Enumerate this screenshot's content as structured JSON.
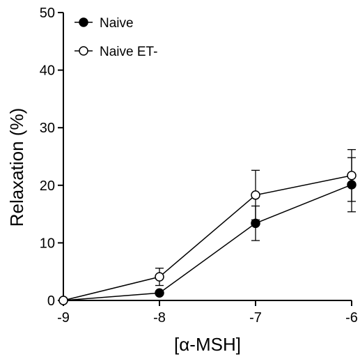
{
  "chart_data": {
    "type": "line",
    "title": "",
    "xlabel": "[α-MSH]",
    "ylabel": "Relaxation (%)",
    "xlim": [
      -9,
      -6
    ],
    "ylim": [
      0,
      50
    ],
    "x_ticks": [
      -9,
      -8,
      -7,
      -6
    ],
    "y_ticks": [
      0,
      10,
      20,
      30,
      40,
      50
    ],
    "grid": false,
    "legend_position": "top-left",
    "series": [
      {
        "name": "Naive",
        "marker": "filled-circle",
        "color": "#000000",
        "x": [
          -9,
          -8,
          -7,
          -6
        ],
        "y": [
          0,
          1.3,
          13.4,
          20.1
        ],
        "error": [
          0,
          0,
          3.0,
          4.7
        ]
      },
      {
        "name": "Naive ET-",
        "marker": "open-circle",
        "color": "#000000",
        "x": [
          -9,
          -8,
          -7,
          -6
        ],
        "y": [
          0,
          4.1,
          18.3,
          21.7
        ],
        "error": [
          0,
          1.5,
          4.3,
          4.5
        ]
      }
    ]
  }
}
